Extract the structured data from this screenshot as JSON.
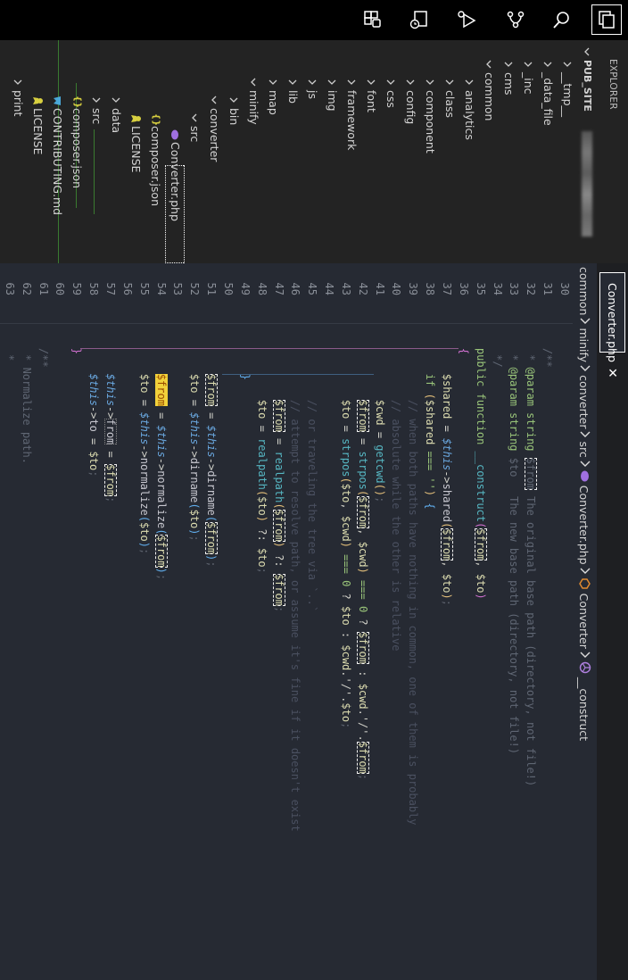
{
  "activity_bar": {
    "icons": [
      {
        "name": "explorer-icon",
        "active": true
      },
      {
        "name": "search-icon",
        "active": false
      },
      {
        "name": "source-control-icon",
        "active": false
      },
      {
        "name": "run-debug-icon",
        "active": false
      },
      {
        "name": "timeline-icon",
        "active": false
      },
      {
        "name": "extensions-icon",
        "active": false
      }
    ]
  },
  "explorer": {
    "title": "EXPLORER",
    "tree": [
      {
        "label": "PUB_SITE",
        "depth": 0,
        "kind": "folder-open",
        "root": true
      },
      {
        "label": "__tmp__",
        "depth": 1,
        "kind": "folder"
      },
      {
        "label": "_data_file",
        "depth": 1,
        "kind": "folder"
      },
      {
        "label": "_inc",
        "depth": 1,
        "kind": "folder"
      },
      {
        "label": "cms",
        "depth": 1,
        "kind": "folder"
      },
      {
        "label": "common",
        "depth": 1,
        "kind": "folder-open"
      },
      {
        "label": "analytics",
        "depth": 2,
        "kind": "folder"
      },
      {
        "label": "class",
        "depth": 2,
        "kind": "folder"
      },
      {
        "label": "component",
        "depth": 2,
        "kind": "folder"
      },
      {
        "label": "config",
        "depth": 2,
        "kind": "folder"
      },
      {
        "label": "css",
        "depth": 2,
        "kind": "folder"
      },
      {
        "label": "font",
        "depth": 2,
        "kind": "folder"
      },
      {
        "label": "framework",
        "depth": 2,
        "kind": "folder"
      },
      {
        "label": "img",
        "depth": 2,
        "kind": "folder"
      },
      {
        "label": "js",
        "depth": 2,
        "kind": "folder"
      },
      {
        "label": "lib",
        "depth": 2,
        "kind": "folder"
      },
      {
        "label": "map",
        "depth": 2,
        "kind": "folder"
      },
      {
        "label": "minify",
        "depth": 2,
        "kind": "folder-open"
      },
      {
        "label": "bin",
        "depth": 3,
        "kind": "folder"
      },
      {
        "label": "converter",
        "depth": 3,
        "kind": "folder-open"
      },
      {
        "label": "src",
        "depth": 4,
        "kind": "folder-open"
      },
      {
        "label": "Converter.php",
        "depth": 5,
        "kind": "file",
        "icon": "php",
        "selected": true
      },
      {
        "label": "composer.json",
        "depth": 4,
        "kind": "file",
        "icon": "json"
      },
      {
        "label": "LICENSE",
        "depth": 4,
        "kind": "file",
        "icon": "license"
      },
      {
        "label": "data",
        "depth": 3,
        "kind": "folder"
      },
      {
        "label": "src",
        "depth": 3,
        "kind": "folder"
      },
      {
        "label": "composer.json",
        "depth": 3,
        "kind": "file",
        "icon": "json"
      },
      {
        "label": "CONTRIBUTING.md",
        "depth": 3,
        "kind": "file",
        "icon": "markdown"
      },
      {
        "label": "LICENSE",
        "depth": 3,
        "kind": "file",
        "icon": "license"
      },
      {
        "label": "print",
        "depth": 2,
        "kind": "folder"
      }
    ]
  },
  "editor": {
    "tab": {
      "label": "Converter.php",
      "close": "✕"
    },
    "breadcrumb": [
      {
        "label": "common"
      },
      {
        "label": "minify"
      },
      {
        "label": "converter"
      },
      {
        "label": "src"
      },
      {
        "label": "Converter.php",
        "icon": "php"
      },
      {
        "label": "Converter",
        "icon": "class"
      },
      {
        "label": "__construct",
        "icon": "method"
      }
    ],
    "colors": {
      "php": "#a070e0",
      "class": "#e08a30",
      "method": "#b080e0",
      "json": "#d8d040",
      "license": "#d8d040",
      "markdown": "#4aa8d8",
      "highlight": "#f2d13a"
    },
    "code": {
      "start_line": 30,
      "lines": [
        [],
        [
          [
            "    /**",
            "cm"
          ]
        ],
        [
          [
            "     * ",
            "cm"
          ],
          [
            "@param",
            "kw"
          ],
          [
            " ",
            "cm"
          ],
          [
            "string",
            "kw"
          ],
          [
            " ",
            "cm"
          ],
          [
            "$from",
            "cm hl"
          ],
          [
            " The original base path (directory, not file!)",
            "cm"
          ]
        ],
        [
          [
            "     * ",
            "cm"
          ],
          [
            "@param",
            "kw"
          ],
          [
            " ",
            "cm"
          ],
          [
            "string",
            "kw"
          ],
          [
            " $to   The new base path (directory, not file!)",
            "cm"
          ]
        ],
        [
          [
            "     */",
            "cm"
          ]
        ],
        [
          [
            "    ",
            ""
          ],
          [
            "public",
            "kw"
          ],
          [
            " ",
            ""
          ],
          [
            "function",
            "kw"
          ],
          [
            " ",
            ""
          ],
          [
            "__construct",
            "fn"
          ],
          [
            "(",
            "pm"
          ],
          [
            "$from",
            "var hl"
          ],
          [
            ", ",
            "op"
          ],
          [
            "$to",
            "var"
          ],
          [
            ")",
            "pm"
          ]
        ],
        [
          [
            "    ",
            ""
          ],
          [
            "{",
            "pm"
          ]
        ],
        [
          [
            "        ",
            ""
          ],
          [
            "$shared",
            "var"
          ],
          [
            " = ",
            "op"
          ],
          [
            "$this",
            "this"
          ],
          [
            "->",
            "op"
          ],
          [
            "shared",
            "method"
          ],
          [
            "(",
            "py"
          ],
          [
            "$from",
            "var hl"
          ],
          [
            ", ",
            "op"
          ],
          [
            "$to",
            "var"
          ],
          [
            ")",
            "py"
          ],
          [
            ";",
            "dim"
          ]
        ],
        [
          [
            "        ",
            ""
          ],
          [
            "if",
            "kw"
          ],
          [
            " ",
            ""
          ],
          [
            "(",
            "py"
          ],
          [
            "$shared",
            "var"
          ],
          [
            " === ",
            "kw"
          ],
          [
            "''",
            "str"
          ],
          [
            ")",
            "py"
          ],
          [
            " ",
            ""
          ],
          [
            "{",
            "pb"
          ]
        ],
        [
          [
            "            // when both paths have nothing in common, one of them is probably",
            "cmf"
          ]
        ],
        [
          [
            "            // absolute while the other is relative",
            "cmf"
          ]
        ],
        [
          [
            "            ",
            ""
          ],
          [
            "$cwd",
            "var"
          ],
          [
            " = ",
            "op"
          ],
          [
            "getcwd",
            "fn"
          ],
          [
            "()",
            "py"
          ],
          [
            ";",
            "dim"
          ]
        ],
        [
          [
            "            ",
            ""
          ],
          [
            "$from",
            "var hl"
          ],
          [
            " = ",
            "op"
          ],
          [
            "strpos",
            "fn"
          ],
          [
            "(",
            "py"
          ],
          [
            "$from",
            "var hl"
          ],
          [
            ", ",
            "op"
          ],
          [
            "$cwd",
            "var"
          ],
          [
            ")",
            "py"
          ],
          [
            " === ",
            "kw"
          ],
          [
            "0",
            "num"
          ],
          [
            " ? ",
            "op"
          ],
          [
            "$from",
            "var hl"
          ],
          [
            " : ",
            "op"
          ],
          [
            "$cwd",
            "var"
          ],
          [
            ".'/'.",
            "op"
          ],
          [
            "$from",
            "var hl"
          ],
          [
            ";",
            "dim"
          ]
        ],
        [
          [
            "            ",
            ""
          ],
          [
            "$to",
            "var"
          ],
          [
            " = ",
            "op"
          ],
          [
            "strpos",
            "fn"
          ],
          [
            "(",
            "py"
          ],
          [
            "$to",
            "var"
          ],
          [
            ", ",
            "op"
          ],
          [
            "$cwd",
            "var"
          ],
          [
            ")",
            "py"
          ],
          [
            " === ",
            "kw"
          ],
          [
            "0",
            "num"
          ],
          [
            " ? ",
            "op"
          ],
          [
            "$to",
            "var"
          ],
          [
            " : ",
            "op"
          ],
          [
            "$cwd",
            "var"
          ],
          [
            ".'/'.",
            "op"
          ],
          [
            "$to",
            "var"
          ],
          [
            ";",
            "dim"
          ]
        ],
        [],
        [
          [
            "            // or traveling the tree via `..`",
            "cmf"
          ]
        ],
        [
          [
            "            // attempt to resolve path, or assume it's fine if it doesn't exist",
            "cmf"
          ]
        ],
        [
          [
            "            ",
            ""
          ],
          [
            "$from",
            "var hl"
          ],
          [
            " = ",
            "op"
          ],
          [
            "realpath",
            "fn"
          ],
          [
            "(",
            "py"
          ],
          [
            "$from",
            "var hl"
          ],
          [
            ")",
            "py"
          ],
          [
            " ?: ",
            "op"
          ],
          [
            "$from",
            "var hl"
          ],
          [
            ";",
            "dim"
          ]
        ],
        [
          [
            "            ",
            ""
          ],
          [
            "$to",
            "var"
          ],
          [
            " = ",
            "op"
          ],
          [
            "realpath",
            "fn"
          ],
          [
            "(",
            "py"
          ],
          [
            "$to",
            "var"
          ],
          [
            ")",
            "py"
          ],
          [
            " ?: ",
            "op"
          ],
          [
            "$to",
            "var"
          ],
          [
            ";",
            "dim"
          ]
        ],
        [
          [
            "        ",
            ""
          ],
          [
            "}",
            "pb"
          ]
        ],
        [],
        [
          [
            "        ",
            ""
          ],
          [
            "$from",
            "var hl"
          ],
          [
            " = ",
            "op"
          ],
          [
            "$this",
            "this"
          ],
          [
            "->",
            "op"
          ],
          [
            "dirname",
            "method"
          ],
          [
            "(",
            "pb"
          ],
          [
            "$from",
            "var hl"
          ],
          [
            ")",
            "pb"
          ],
          [
            ";",
            "dim"
          ]
        ],
        [
          [
            "        ",
            ""
          ],
          [
            "$to",
            "var"
          ],
          [
            " = ",
            "op"
          ],
          [
            "$this",
            "this"
          ],
          [
            "->",
            "op"
          ],
          [
            "dirname",
            "method"
          ],
          [
            "(",
            "pb"
          ],
          [
            "$to",
            "var"
          ],
          [
            ")",
            "pb"
          ],
          [
            ";",
            "dim"
          ]
        ],
        [],
        [
          [
            "        ",
            ""
          ],
          [
            "$from",
            "var hlY"
          ],
          [
            " = ",
            "op"
          ],
          [
            "$this",
            "this"
          ],
          [
            "->",
            "op"
          ],
          [
            "normalize",
            "method"
          ],
          [
            "(",
            "pb"
          ],
          [
            "$from",
            "var hl"
          ],
          [
            ")",
            "pb"
          ],
          [
            ";",
            "dim"
          ]
        ],
        [
          [
            "        ",
            ""
          ],
          [
            "$to",
            "var"
          ],
          [
            " = ",
            "op"
          ],
          [
            "$this",
            "this"
          ],
          [
            "->",
            "op"
          ],
          [
            "normalize",
            "method"
          ],
          [
            "(",
            "pb"
          ],
          [
            "$to",
            "var"
          ],
          [
            ")",
            "pb"
          ],
          [
            ";",
            "dim"
          ]
        ],
        [],
        [
          [
            "        ",
            ""
          ],
          [
            "$this",
            "this"
          ],
          [
            "->",
            "op"
          ],
          [
            "from",
            "method hld"
          ],
          [
            " = ",
            "op"
          ],
          [
            "$from",
            "var hl"
          ],
          [
            ";",
            "dim"
          ]
        ],
        [
          [
            "        ",
            ""
          ],
          [
            "$this",
            "this"
          ],
          [
            "->",
            "op"
          ],
          [
            "to",
            "method"
          ],
          [
            " = ",
            "op"
          ],
          [
            "$to",
            "var"
          ],
          [
            ";",
            "dim"
          ]
        ],
        [
          [
            "    ",
            ""
          ],
          [
            "}",
            "pm"
          ]
        ],
        [],
        [
          [
            "    /**",
            "cm"
          ]
        ],
        [
          [
            "     * Normalize path.",
            "cm"
          ]
        ],
        [
          [
            "     *",
            "cm"
          ]
        ]
      ]
    }
  }
}
